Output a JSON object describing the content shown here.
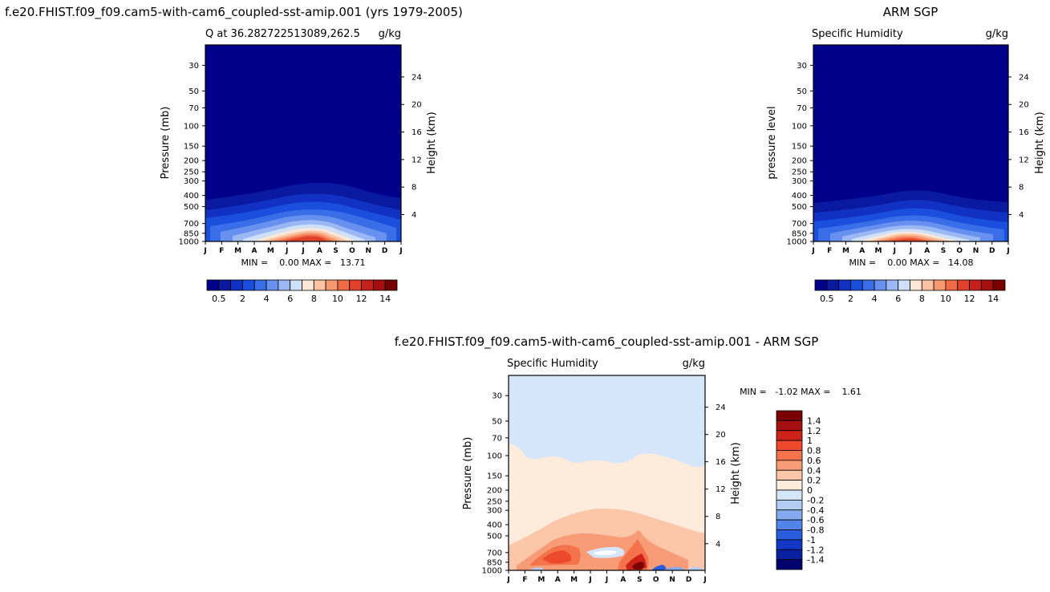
{
  "page_title": "f.e20.FHIST.f09_f09.cam5-with-cam6_coupled-sst-amip.001 (yrs 1979-2005)",
  "chart_data": [
    {
      "type": "contour",
      "title": "",
      "subtitle_left": "Q at 36.282722513089,262.5",
      "subtitle_right": "g/kg",
      "xlabel": "",
      "ylabel": "Pressure (mb)",
      "ylabel_right": "Height (km)",
      "months": [
        "J",
        "F",
        "M",
        "A",
        "M",
        "J",
        "J",
        "A",
        "S",
        "O",
        "N",
        "D",
        "J"
      ],
      "pressure_ticks": [
        30,
        50,
        70,
        100,
        150,
        200,
        250,
        300,
        400,
        500,
        700,
        850,
        1000
      ],
      "height_ticks": [
        24,
        20,
        16,
        12,
        8,
        4
      ],
      "ylim": [
        1000,
        20
      ],
      "stats": "MIN =    0.00 MAX =   13.71",
      "min": 0.0,
      "max": 13.71,
      "colorbar_levels": [
        0.5,
        1,
        2,
        3,
        4,
        5,
        6,
        7,
        8,
        9,
        10,
        11,
        12,
        13,
        14
      ],
      "colorbar_labels": [
        "0.5",
        "2",
        "4",
        "6",
        "8",
        "10",
        "12",
        "14"
      ],
      "colorbar_colors": [
        "#01008a",
        "#0a1aa0",
        "#1131c2",
        "#1a4fdd",
        "#3a6ee8",
        "#6891ef",
        "#9bb8f5",
        "#cfe0fa",
        "#fde7d6",
        "#fcc2a2",
        "#f7996f",
        "#ef6a45",
        "#e0412a",
        "#c6201a",
        "#a3100f",
        "#7a0000"
      ]
    },
    {
      "type": "contour",
      "title": "ARM SGP",
      "subtitle_left": "Specific Humidity",
      "subtitle_right": "g/kg",
      "xlabel": "",
      "ylabel": "pressure level",
      "ylabel_right": "Height (km)",
      "months": [
        "J",
        "F",
        "M",
        "A",
        "M",
        "J",
        "J",
        "A",
        "S",
        "O",
        "N",
        "D",
        "J"
      ],
      "pressure_ticks": [
        30,
        50,
        70,
        100,
        150,
        200,
        250,
        300,
        400,
        500,
        700,
        850,
        1000
      ],
      "height_ticks": [
        24,
        20,
        16,
        12,
        8,
        4
      ],
      "ylim": [
        1000,
        20
      ],
      "stats": "MIN =    0.00 MAX =   14.08",
      "min": 0.0,
      "max": 14.08,
      "colorbar_labels": [
        "0.5",
        "2",
        "4",
        "6",
        "8",
        "10",
        "12",
        "14"
      ]
    },
    {
      "type": "contour",
      "title": "f.e20.FHIST.f09_f09.cam5-with-cam6_coupled-sst-amip.001 - ARM SGP",
      "subtitle_left": "Specific Humidity",
      "subtitle_right": "g/kg",
      "xlabel": "",
      "ylabel": "Pressure (mb)",
      "ylabel_right": "Height (km)",
      "months": [
        "J",
        "F",
        "M",
        "A",
        "M",
        "J",
        "J",
        "A",
        "S",
        "O",
        "N",
        "D",
        "J"
      ],
      "pressure_ticks": [
        30,
        50,
        70,
        100,
        150,
        200,
        250,
        300,
        400,
        500,
        700,
        850,
        1000
      ],
      "height_ticks": [
        24,
        20,
        16,
        12,
        8,
        4
      ],
      "ylim": [
        1000,
        20
      ],
      "stats": "MIN =   -1.02 MAX =    1.61",
      "min": -1.02,
      "max": 1.61,
      "colorbar_labels": [
        "1.4",
        "1.2",
        "1",
        "0.8",
        "0.6",
        "0.4",
        "0.2",
        "0",
        "-0.2",
        "-0.4",
        "-0.6",
        "-0.8",
        "-1",
        "-1.2",
        "-1.4"
      ],
      "colorbar_colors": [
        "#7a0000",
        "#a50f0f",
        "#cc2218",
        "#ec4a2a",
        "#f4734c",
        "#f89c78",
        "#fcc7a8",
        "#fdebdc",
        "#d6e6fa",
        "#b3cdf3",
        "#86aaee",
        "#5483e6",
        "#2a5ddd",
        "#1038c4",
        "#08209f",
        "#00006e"
      ]
    }
  ]
}
